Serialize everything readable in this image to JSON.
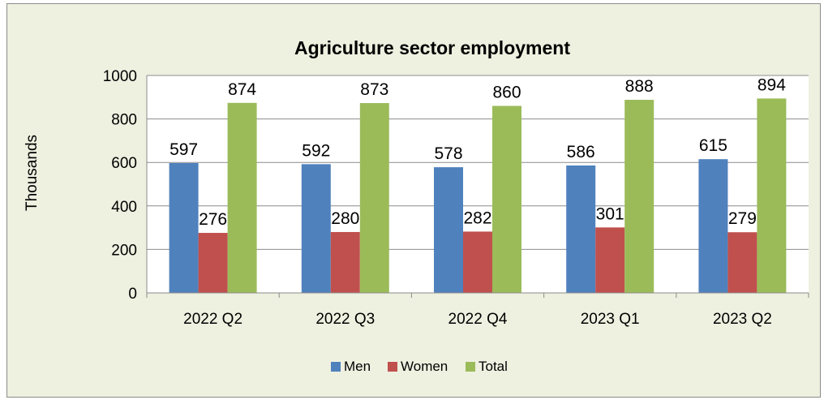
{
  "chart_data": {
    "type": "bar",
    "title": "Agriculture sector employment",
    "xlabel": "",
    "ylabel": "Thousands",
    "categories": [
      "2022 Q2",
      "2022 Q3",
      "2022 Q4",
      "2023 Q1",
      "2023 Q2"
    ],
    "series": [
      {
        "name": "Men",
        "color": "#4f81bd",
        "values": [
          597,
          592,
          578,
          586,
          615
        ]
      },
      {
        "name": "Women",
        "color": "#c0504d",
        "values": [
          276,
          280,
          282,
          301,
          279
        ]
      },
      {
        "name": "Total",
        "color": "#9bbb59",
        "values": [
          874,
          873,
          860,
          888,
          894
        ]
      }
    ],
    "ylim": [
      0,
      1000
    ],
    "yticks": [
      0,
      200,
      400,
      600,
      800,
      1000
    ],
    "grid": true,
    "legend_position": "bottom"
  }
}
